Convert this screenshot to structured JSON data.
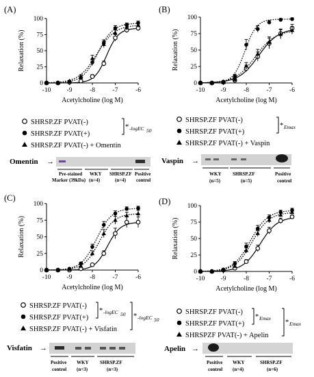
{
  "chart_data": [
    {
      "type": "line",
      "panel_label": "(A)",
      "xlabel": "Acetylcholine (log M)",
      "ylabel": "Relaxation (%)",
      "xlim": [
        -10,
        -6
      ],
      "ylim": [
        0,
        100
      ],
      "xticks": [
        "-10",
        "-9",
        "-8",
        "-7",
        "-6"
      ],
      "yticks": [
        "0",
        "25",
        "50",
        "75",
        "100"
      ],
      "x": [
        -10,
        -9.5,
        -9,
        -8.5,
        -8,
        -7.5,
        -7,
        -6.5,
        -6
      ],
      "series": [
        {
          "name": "SHRSP.ZF PVAT(-)",
          "marker": "open-circle",
          "line": "solid",
          "values": [
            0,
            0,
            1,
            3,
            10,
            30,
            70,
            82,
            85
          ],
          "err": [
            0,
            0,
            1,
            2,
            3,
            4,
            5,
            4,
            4
          ]
        },
        {
          "name": "SHRSP.ZF PVAT(+)",
          "marker": "filled-circle",
          "line": "dotted",
          "values": [
            0,
            0,
            2,
            8,
            32,
            62,
            85,
            90,
            93
          ],
          "err": [
            0,
            0,
            1,
            3,
            5,
            5,
            4,
            3,
            3
          ]
        },
        {
          "name": "SHRSP.ZF PVAT(-) + Omentin",
          "marker": "triangle",
          "line": "dotted",
          "values": [
            0,
            0,
            3,
            10,
            38,
            60,
            78,
            86,
            90
          ],
          "err": [
            0,
            0,
            1,
            3,
            5,
            5,
            4,
            4,
            4
          ]
        }
      ],
      "annotations": [
        "*",
        "-logEC",
        "50"
      ],
      "blot": {
        "protein": "Omentin",
        "lanes": [
          "Pre-stained",
          "Marker (39kDa)",
          "WKY",
          "(n=4)",
          "SHRSP.ZF",
          "(n=4)",
          "Positive",
          "control"
        ]
      }
    },
    {
      "type": "line",
      "panel_label": "(B)",
      "xlabel": "Acetylcholine (log M)",
      "ylabel": "Relaxation (%)",
      "xlim": [
        -10,
        -6
      ],
      "ylim": [
        0,
        100
      ],
      "xticks": [
        "-10",
        "-9",
        "-8",
        "-7",
        "-6"
      ],
      "yticks": [
        "0",
        "25",
        "50",
        "75",
        "100"
      ],
      "x": [
        -10,
        -9.5,
        -9,
        -8.5,
        -8,
        -7.5,
        -7,
        -6.5,
        -6
      ],
      "series": [
        {
          "name": "SHRSP.ZF PVAT(-)",
          "marker": "open-circle",
          "line": "solid",
          "values": [
            0,
            0,
            1,
            4,
            22,
            40,
            60,
            75,
            83
          ],
          "err": [
            0,
            0,
            1,
            2,
            5,
            7,
            8,
            7,
            6
          ]
        },
        {
          "name": "SHRSP.ZF PVAT(+)",
          "marker": "filled-circle",
          "line": "dotted",
          "values": [
            0,
            0,
            2,
            10,
            58,
            82,
            92,
            96,
            97
          ],
          "err": [
            0,
            0,
            1,
            3,
            8,
            5,
            3,
            2,
            2
          ]
        },
        {
          "name": "SHRSP.ZF PVAT(-) + Vaspin",
          "marker": "triangle",
          "line": "dotted",
          "values": [
            0,
            0,
            1,
            5,
            26,
            44,
            62,
            74,
            80
          ],
          "err": [
            0,
            0,
            1,
            2,
            5,
            7,
            8,
            7,
            6
          ]
        }
      ],
      "annotations": [
        "*",
        "Emax"
      ],
      "blot": {
        "protein": "Vaspin",
        "lanes": [
          "WKY",
          "(n=5)",
          "SHRSP.ZF",
          "(n=5)",
          "Positive",
          "control"
        ]
      }
    },
    {
      "type": "line",
      "panel_label": "(C)",
      "xlabel": "Acetylcholine (log M)",
      "ylabel": "Relaxation (%)",
      "xlim": [
        -10,
        -6
      ],
      "ylim": [
        0,
        100
      ],
      "xticks": [
        "-10",
        "-9",
        "-8",
        "-7",
        "-6"
      ],
      "yticks": [
        "0",
        "25",
        "50",
        "75",
        "100"
      ],
      "x": [
        -10,
        -9.5,
        -9,
        -8.5,
        -8,
        -7.5,
        -7,
        -6.5,
        -6
      ],
      "series": [
        {
          "name": "SHRSP.ZF PVAT(-)",
          "marker": "open-circle",
          "line": "solid",
          "values": [
            0,
            0,
            0,
            2,
            8,
            25,
            55,
            72,
            72
          ],
          "err": [
            0,
            0,
            1,
            1,
            2,
            4,
            8,
            8,
            8
          ]
        },
        {
          "name": "SHRSP.ZF PVAT(+)",
          "marker": "filled-circle",
          "line": "dotted",
          "values": [
            0,
            0,
            2,
            10,
            35,
            68,
            85,
            92,
            93
          ],
          "err": [
            0,
            0,
            1,
            2,
            4,
            5,
            4,
            3,
            3
          ]
        },
        {
          "name": "SHRSP.ZF PVAT(-) + Visfatin",
          "marker": "triangle",
          "line": "dotted",
          "values": [
            0,
            0,
            1,
            6,
            25,
            55,
            75,
            82,
            85
          ],
          "err": [
            0,
            0,
            1,
            2,
            4,
            6,
            6,
            5,
            5
          ]
        }
      ],
      "annotations": [
        "*",
        "-logEC",
        "50",
        "*",
        "-logEC",
        "50"
      ],
      "blot": {
        "protein": "Visfatin",
        "lanes": [
          "Positive",
          "control",
          "WKY",
          "(n=3)",
          "SHRSP.ZF",
          "(n=3)"
        ]
      }
    },
    {
      "type": "line",
      "panel_label": "(D)",
      "xlabel": "Acetylcholine (log M)",
      "ylabel": "Relaxation (%)",
      "xlim": [
        -10,
        -6
      ],
      "ylim": [
        0,
        100
      ],
      "xticks": [
        "-10",
        "-9",
        "-8",
        "-7",
        "-6"
      ],
      "yticks": [
        "0",
        "25",
        "50",
        "75",
        "100"
      ],
      "x": [
        -10,
        -9.5,
        -9,
        -8.5,
        -8,
        -7.5,
        -7,
        -6.5,
        -6
      ],
      "series": [
        {
          "name": "SHRSP.ZF PVAT(-)",
          "marker": "open-circle",
          "line": "solid",
          "values": [
            0,
            0,
            2,
            5,
            15,
            35,
            62,
            77,
            83
          ],
          "err": [
            0,
            0,
            1,
            2,
            3,
            5,
            5,
            4,
            3
          ]
        },
        {
          "name": "SHRSP.ZF PVAT(+)",
          "marker": "filled-circle",
          "line": "dotted",
          "values": [
            0,
            0,
            3,
            12,
            38,
            65,
            82,
            90,
            93
          ],
          "err": [
            0,
            0,
            1,
            3,
            5,
            5,
            4,
            3,
            3
          ]
        },
        {
          "name": "SHRSPZF PVAT(-) + Apelin",
          "marker": "triangle",
          "line": "dotted",
          "values": [
            0,
            0,
            2,
            8,
            32,
            58,
            78,
            86,
            90
          ],
          "err": [
            0,
            0,
            1,
            2,
            4,
            5,
            4,
            3,
            3
          ]
        }
      ],
      "annotations": [
        "*",
        "Emax",
        "*",
        "Emax"
      ],
      "blot": {
        "protein": "Apelin",
        "lanes": [
          "Positive",
          "control",
          "WKY",
          "(n=4)",
          "SHRSP.ZF",
          "(n=6)"
        ]
      }
    }
  ]
}
